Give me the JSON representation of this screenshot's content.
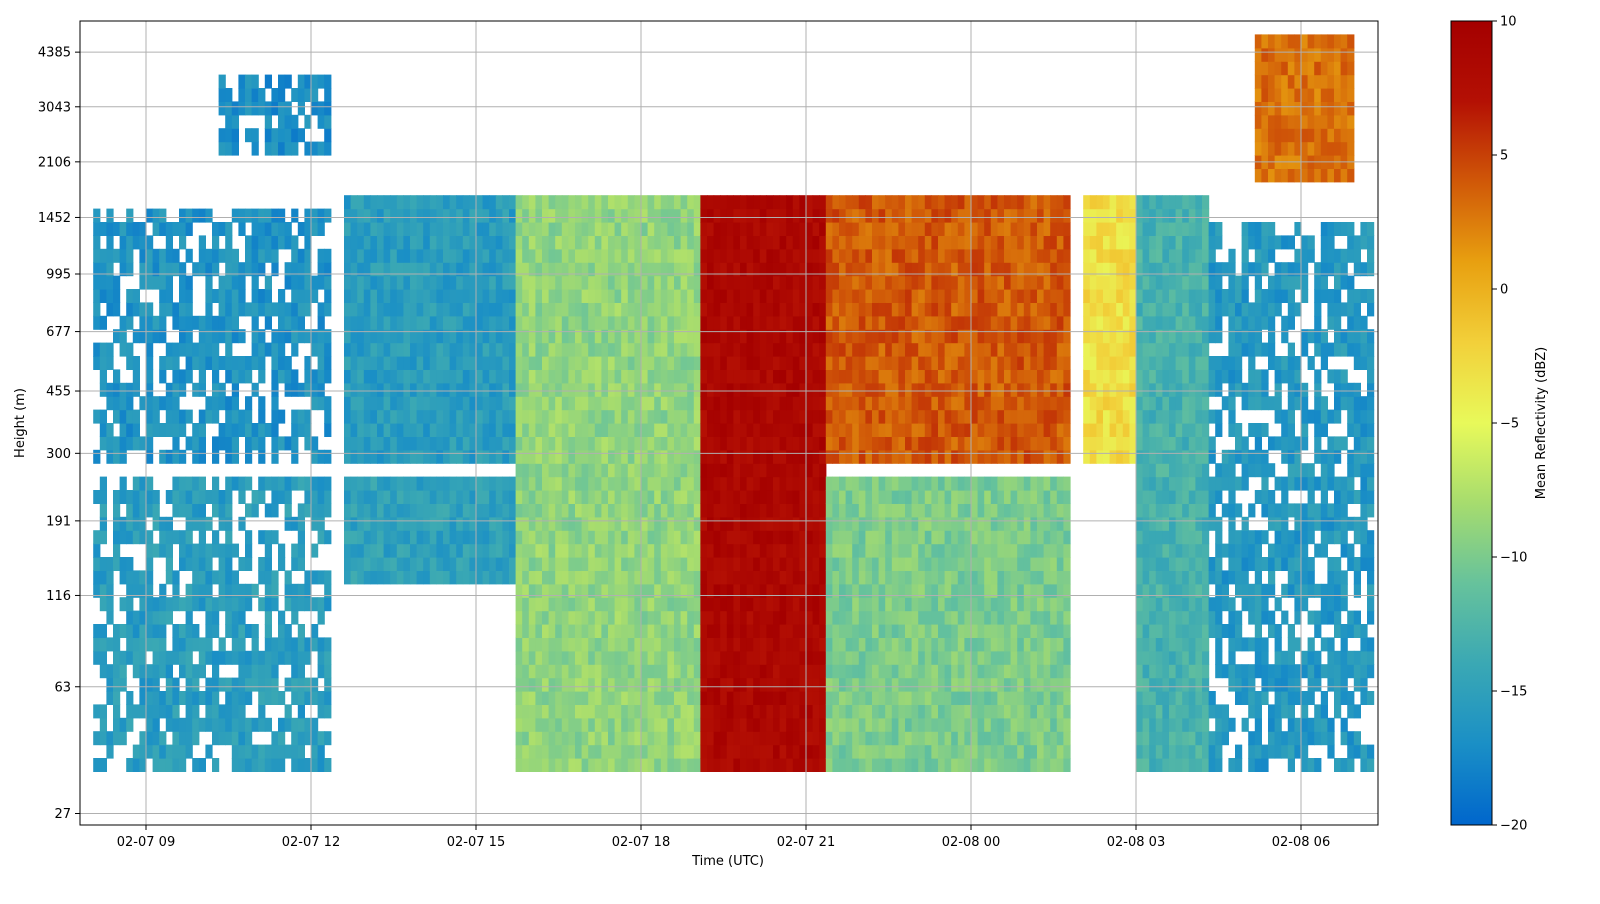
{
  "chart_data": {
    "type": "heatmap",
    "xlabel": "Time (UTC)",
    "ylabel": "Height (m)",
    "colorbar_label": "Mean Reflectivity (dBZ)",
    "x_ticks": [
      "02-07 09",
      "02-07 12",
      "02-07 15",
      "02-07 18",
      "02-07 21",
      "02-08 00",
      "02-08 03",
      "02-08 06"
    ],
    "x_tick_hours": [
      9,
      12,
      15,
      18,
      21,
      24,
      27,
      30
    ],
    "xlim_hours": [
      7.8,
      31.4
    ],
    "y_ticks": [
      "27",
      "63",
      "116",
      "191",
      "300",
      "455",
      "677",
      "995",
      "1452",
      "2106",
      "3043",
      "4385"
    ],
    "y_tick_heights": [
      27,
      63,
      116,
      191,
      300,
      455,
      677,
      995,
      1452,
      2106,
      3043,
      4385
    ],
    "y_scale": "log",
    "y_extent_m": [
      25,
      5400
    ],
    "colorbar_ticks": [
      "10",
      "5",
      "0",
      "−5",
      "−10",
      "−15",
      "−20"
    ],
    "colorbar_values": [
      10,
      5,
      0,
      -5,
      -10,
      -15,
      -20
    ],
    "zlim": [
      -20,
      10
    ],
    "grid": true,
    "colormap_stops": [
      "#0066cc",
      "#1a8fc6",
      "#3aa8b4",
      "#66c29c",
      "#a6dc6e",
      "#e8f95a",
      "#f2d03a",
      "#e8a010",
      "#d05808",
      "#b41004",
      "#a40000"
    ],
    "approx_regions": [
      {
        "t0": 8.0,
        "t1": 12.3,
        "h0": 37,
        "h1": 260,
        "dbz": -15.5,
        "coverage": "patchy"
      },
      {
        "t0": 8.0,
        "t1": 12.3,
        "h0": 280,
        "h1": 1500,
        "dbz": -16.5,
        "coverage": "patchy"
      },
      {
        "t0": 10.2,
        "t1": 12.3,
        "h0": 2300,
        "h1": 3800,
        "dbz": -17,
        "coverage": "patchy"
      },
      {
        "t0": 12.5,
        "t1": 15.7,
        "h0": 280,
        "h1": 1750,
        "dbz": -15.5,
        "coverage": "full"
      },
      {
        "t0": 12.5,
        "t1": 15.7,
        "h0": 120,
        "h1": 260,
        "dbz": -15,
        "coverage": "full"
      },
      {
        "t0": 15.7,
        "t1": 19.0,
        "h0": 37,
        "h1": 1750,
        "dbz": -9,
        "coverage": "full"
      },
      {
        "t0": 19.0,
        "t1": 21.3,
        "h0": 37,
        "h1": 1750,
        "dbz": 8.5,
        "coverage": "full"
      },
      {
        "t0": 21.3,
        "t1": 25.7,
        "h0": 280,
        "h1": 1750,
        "dbz": 4,
        "coverage": "full"
      },
      {
        "t0": 21.3,
        "t1": 25.7,
        "h0": 37,
        "h1": 260,
        "dbz": -10,
        "coverage": "full"
      },
      {
        "t0": 26.0,
        "t1": 27.0,
        "h0": 280,
        "h1": 1750,
        "dbz": -3,
        "coverage": "full"
      },
      {
        "t0": 27.0,
        "t1": 28.3,
        "h0": 37,
        "h1": 1750,
        "dbz": -13,
        "coverage": "full"
      },
      {
        "t0": 28.3,
        "t1": 31.3,
        "h0": 37,
        "h1": 1450,
        "dbz": -16,
        "coverage": "patchy"
      },
      {
        "t0": 29.1,
        "t1": 30.9,
        "h0": 1800,
        "h1": 4900,
        "dbz": 3,
        "coverage": "full"
      }
    ]
  }
}
